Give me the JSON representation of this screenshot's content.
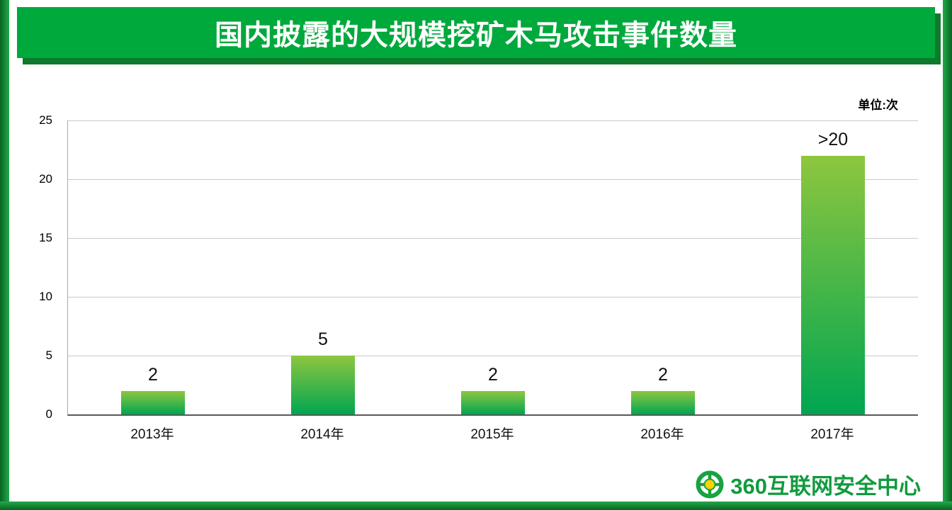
{
  "title": "国内披露的大规模挖矿木马攻击事件数量",
  "unit_label": "单位:次",
  "footer": {
    "brand": "360互联网安全中心"
  },
  "colors": {
    "banner": "#00a93c",
    "banner_shadow": "#0d7a2c",
    "bar_top": "#8ec63f",
    "bar_bottom": "#00a651",
    "brand_green": "#119a3e"
  },
  "chart_data": {
    "type": "bar",
    "title": "国内披露的大规模挖矿木马攻击事件数量",
    "unit": "单位:次",
    "categories": [
      "2013年",
      "2014年",
      "2015年",
      "2016年",
      "2017年"
    ],
    "values": [
      2,
      5,
      2,
      2,
      22
    ],
    "value_labels": [
      "2",
      "5",
      "2",
      "2",
      ">20"
    ],
    "xlabel": "",
    "ylabel": "",
    "ylim": [
      0,
      25
    ],
    "yticks": [
      0,
      5,
      10,
      15,
      20,
      25
    ],
    "grid": true,
    "legend": false
  }
}
